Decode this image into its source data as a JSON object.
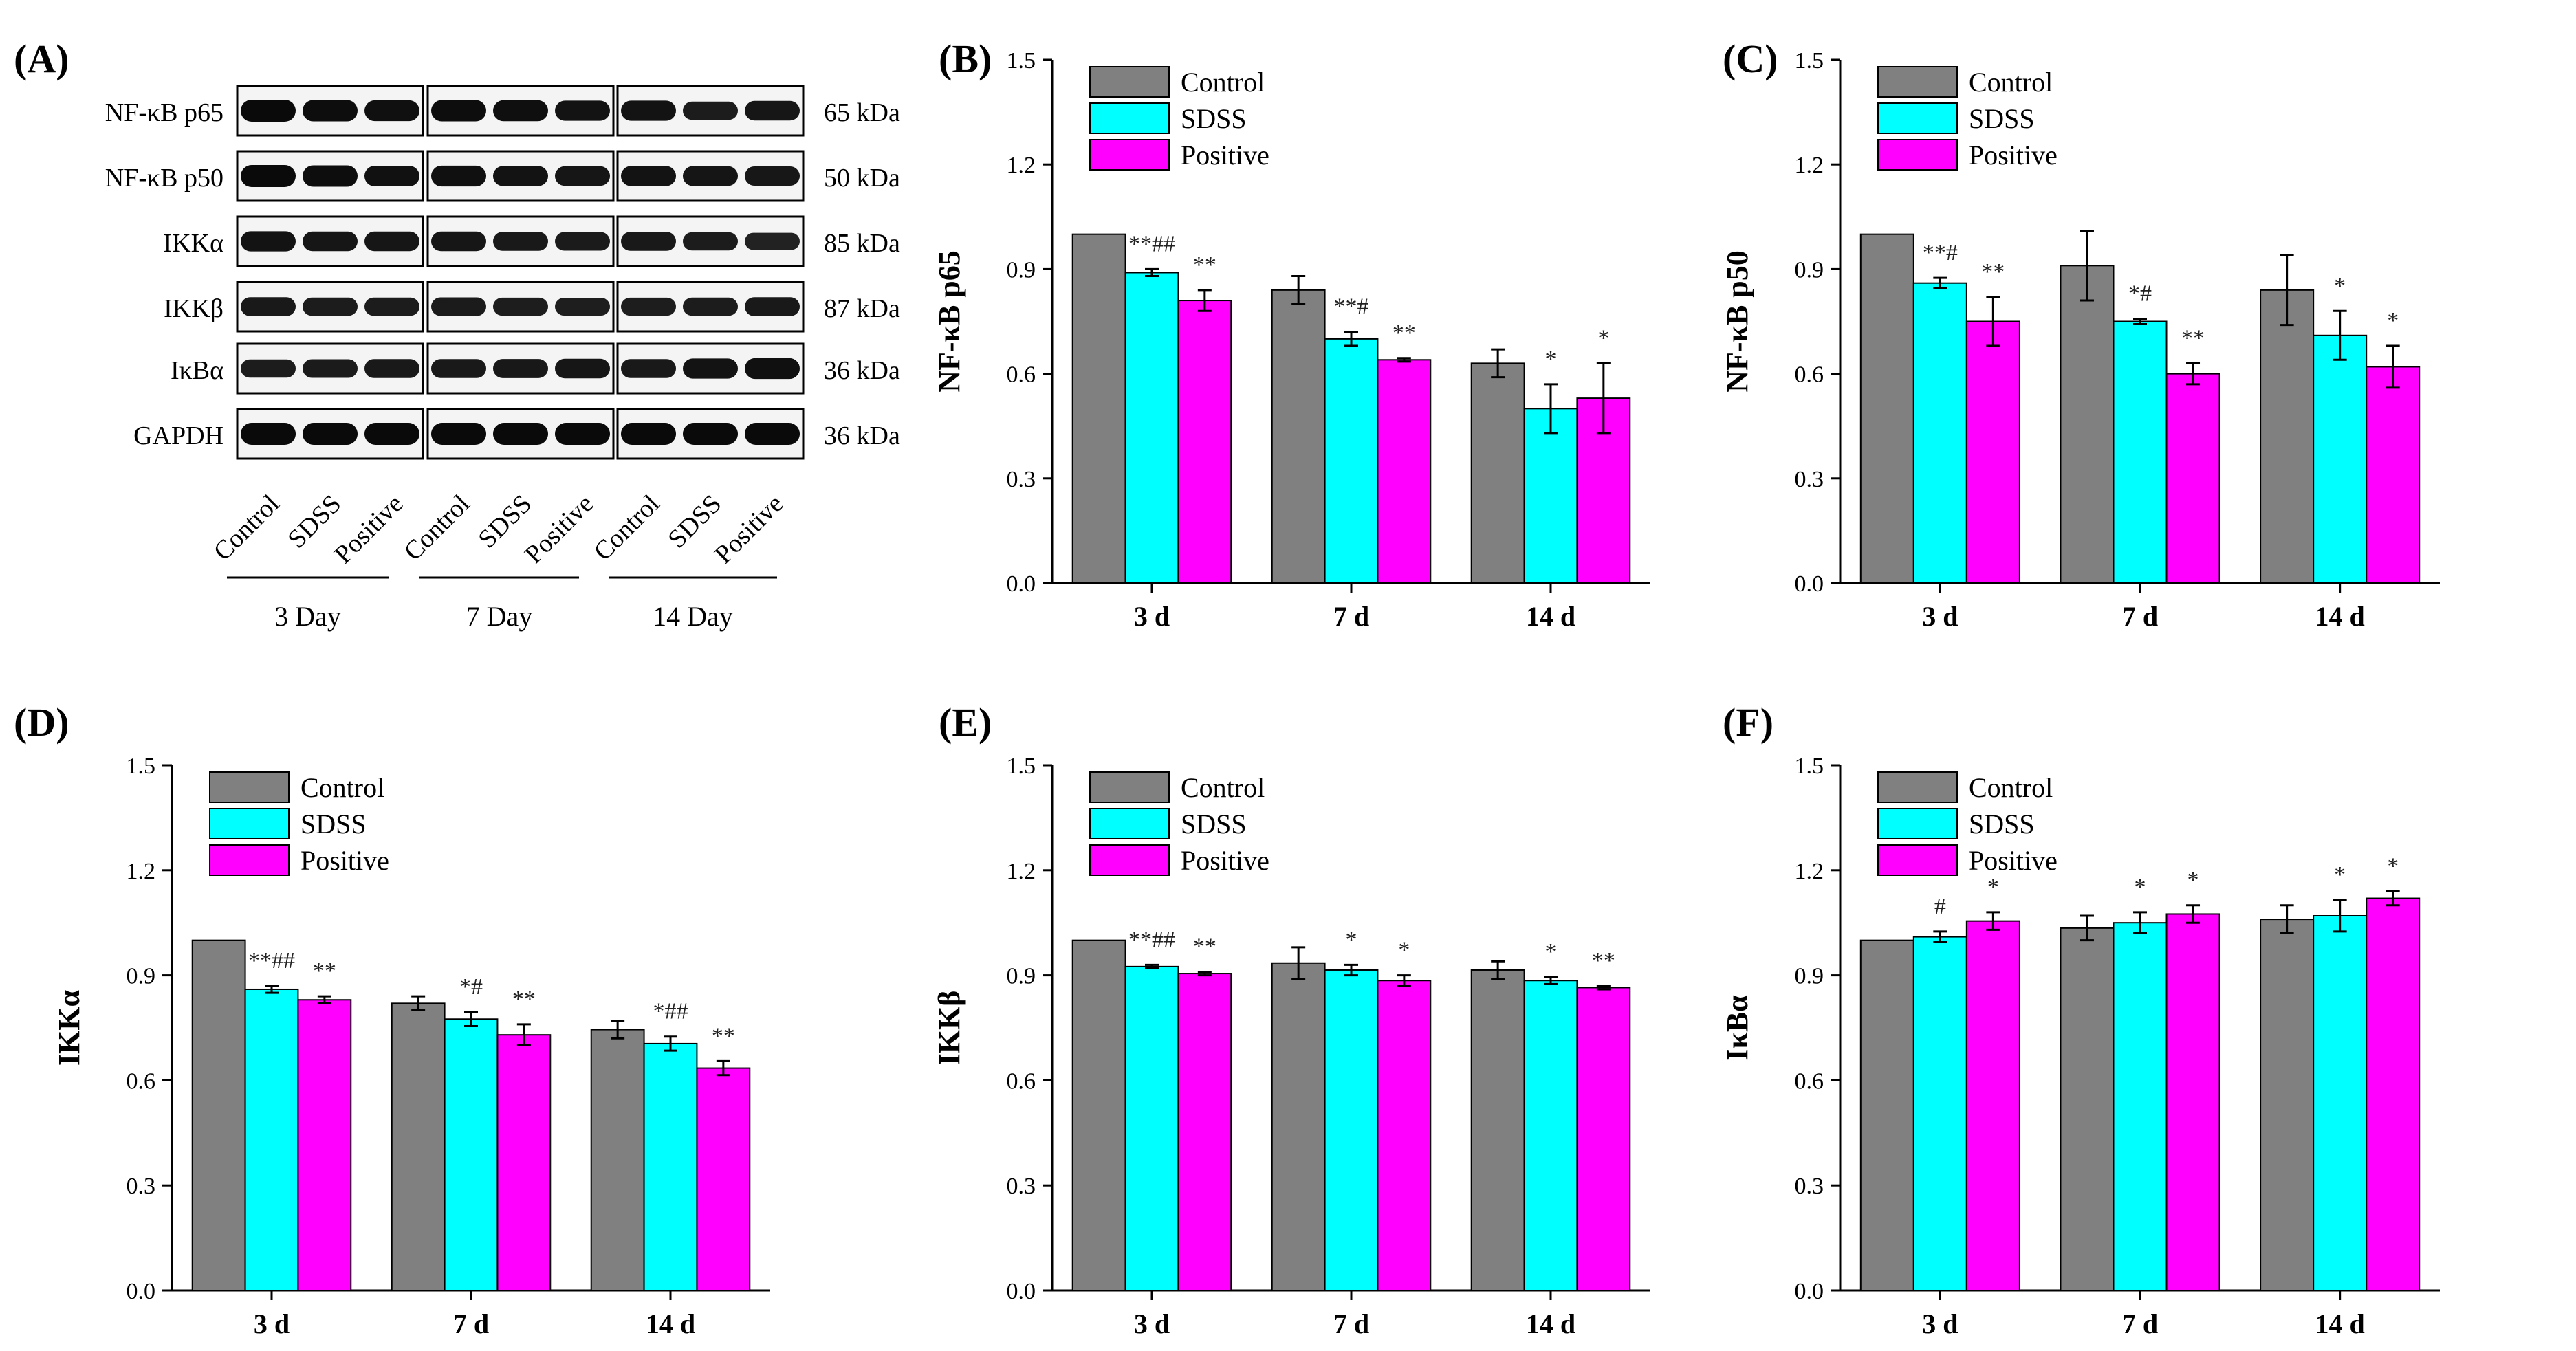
{
  "blot": {
    "panel_label": "(A)",
    "proteins": [
      "NF-κB p65",
      "NF-κB p50",
      "IKKα",
      "IKKβ",
      "IκBα",
      "GAPDH"
    ],
    "sizes": [
      "65 kDa",
      "50 kDa",
      "85 kDa",
      "87 kDa",
      "36 kDa",
      "36 kDa"
    ],
    "lane_labels": [
      "Control",
      "SDSS",
      "Positive"
    ],
    "days": [
      "3 Day",
      "7 Day",
      "14 Day"
    ],
    "band_intensity": [
      [
        1.0,
        0.95,
        0.9,
        0.95,
        0.92,
        0.85,
        0.85,
        0.7,
        0.8
      ],
      [
        1.0,
        0.95,
        0.88,
        0.9,
        0.85,
        0.8,
        0.85,
        0.82,
        0.78
      ],
      [
        0.85,
        0.8,
        0.8,
        0.8,
        0.75,
        0.72,
        0.75,
        0.7,
        0.6
      ],
      [
        0.75,
        0.7,
        0.7,
        0.72,
        0.68,
        0.66,
        0.68,
        0.7,
        0.75
      ],
      [
        0.7,
        0.72,
        0.75,
        0.75,
        0.76,
        0.8,
        0.75,
        0.85,
        0.9
      ],
      [
        1.0,
        1.0,
        1.0,
        1.0,
        1.0,
        1.0,
        1.0,
        1.0,
        1.0
      ]
    ]
  },
  "chart_data": [
    {
      "panel_label": "(B)",
      "type": "bar",
      "ylabel": "NF-κB p65",
      "categories": [
        "3 d",
        "7 d",
        "14 d"
      ],
      "ylim": [
        0,
        1.5
      ],
      "yticks": [
        "0.0",
        "0.3",
        "0.6",
        "0.9",
        "1.2",
        "1.5"
      ],
      "legend": "top-left",
      "series": [
        {
          "name": "Control",
          "color": "#808080",
          "values": [
            1.0,
            0.84,
            0.63
          ],
          "errors": [
            0,
            0.04,
            0.04
          ],
          "marks": [
            "",
            "",
            ""
          ]
        },
        {
          "name": "SDSS",
          "color": "#00FFFF",
          "values": [
            0.89,
            0.7,
            0.5
          ],
          "errors": [
            0.01,
            0.02,
            0.07
          ],
          "marks": [
            "**##",
            "**#",
            "*"
          ]
        },
        {
          "name": "Positive",
          "color": "#FF00FF",
          "values": [
            0.81,
            0.64,
            0.53
          ],
          "errors": [
            0.03,
            0.005,
            0.1
          ],
          "marks": [
            "**",
            "**",
            "*"
          ]
        }
      ]
    },
    {
      "panel_label": "(C)",
      "type": "bar",
      "ylabel": "NF-κB p50",
      "categories": [
        "3 d",
        "7 d",
        "14 d"
      ],
      "ylim": [
        0,
        1.5
      ],
      "yticks": [
        "0.0",
        "0.3",
        "0.6",
        "0.9",
        "1.2",
        "1.5"
      ],
      "legend": "top-left",
      "series": [
        {
          "name": "Control",
          "color": "#808080",
          "values": [
            1.0,
            0.91,
            0.84
          ],
          "errors": [
            0,
            0.1,
            0.1
          ],
          "marks": [
            "",
            "",
            ""
          ]
        },
        {
          "name": "SDSS",
          "color": "#00FFFF",
          "values": [
            0.86,
            0.75,
            0.71
          ],
          "errors": [
            0.015,
            0.008,
            0.07
          ],
          "marks": [
            "**#",
            "*#",
            "*"
          ]
        },
        {
          "name": "Positive",
          "color": "#FF00FF",
          "values": [
            0.75,
            0.6,
            0.62
          ],
          "errors": [
            0.07,
            0.03,
            0.06
          ],
          "marks": [
            "**",
            "**",
            "*"
          ]
        }
      ]
    },
    {
      "panel_label": "(D)",
      "type": "bar",
      "ylabel": "IKKα",
      "categories": [
        "3 d",
        "7 d",
        "14 d"
      ],
      "ylim": [
        0,
        1.5
      ],
      "yticks": [
        "0.0",
        "0.3",
        "0.6",
        "0.9",
        "1.2",
        "1.5"
      ],
      "legend": "top-left",
      "series": [
        {
          "name": "Control",
          "color": "#808080",
          "values": [
            1.0,
            0.82,
            0.745
          ],
          "errors": [
            0,
            0.02,
            0.025
          ],
          "marks": [
            "",
            "",
            ""
          ]
        },
        {
          "name": "SDSS",
          "color": "#00FFFF",
          "values": [
            0.86,
            0.775,
            0.705
          ],
          "errors": [
            0.01,
            0.02,
            0.02
          ],
          "marks": [
            "**##",
            "*#",
            "*##"
          ]
        },
        {
          "name": "Positive",
          "color": "#FF00FF",
          "values": [
            0.83,
            0.73,
            0.635
          ],
          "errors": [
            0.01,
            0.03,
            0.02
          ],
          "marks": [
            "**",
            "**",
            "**"
          ]
        }
      ]
    },
    {
      "panel_label": "(E)",
      "type": "bar",
      "ylabel": "IKKβ",
      "categories": [
        "3 d",
        "7 d",
        "14 d"
      ],
      "ylim": [
        0,
        1.5
      ],
      "yticks": [
        "0.0",
        "0.3",
        "0.6",
        "0.9",
        "1.2",
        "1.5"
      ],
      "legend": "top-left",
      "series": [
        {
          "name": "Control",
          "color": "#808080",
          "values": [
            1.0,
            0.935,
            0.915
          ],
          "errors": [
            0,
            0.045,
            0.025
          ],
          "marks": [
            "",
            "",
            ""
          ]
        },
        {
          "name": "SDSS",
          "color": "#00FFFF",
          "values": [
            0.925,
            0.915,
            0.885
          ],
          "errors": [
            0.005,
            0.015,
            0.01
          ],
          "marks": [
            "**##",
            "*",
            "*"
          ]
        },
        {
          "name": "Positive",
          "color": "#FF00FF",
          "values": [
            0.905,
            0.885,
            0.865
          ],
          "errors": [
            0.005,
            0.015,
            0.005
          ],
          "marks": [
            "**",
            "*",
            "**"
          ]
        }
      ]
    },
    {
      "panel_label": "(F)",
      "type": "bar",
      "ylabel": "IκBα",
      "categories": [
        "3 d",
        "7 d",
        "14 d"
      ],
      "ylim": [
        0,
        1.5
      ],
      "yticks": [
        "0.0",
        "0.3",
        "0.6",
        "0.9",
        "1.2",
        "1.5"
      ],
      "legend": "top-left",
      "series": [
        {
          "name": "Control",
          "color": "#808080",
          "values": [
            1.0,
            1.035,
            1.06
          ],
          "errors": [
            0,
            0.035,
            0.04
          ],
          "marks": [
            "",
            "",
            ""
          ]
        },
        {
          "name": "SDSS",
          "color": "#00FFFF",
          "values": [
            1.01,
            1.05,
            1.07
          ],
          "errors": [
            0.015,
            0.03,
            0.045
          ],
          "marks": [
            "#",
            "*",
            "*"
          ]
        },
        {
          "name": "Positive",
          "color": "#FF00FF",
          "values": [
            1.055,
            1.075,
            1.12
          ],
          "errors": [
            0.025,
            0.025,
            0.02
          ],
          "marks": [
            "*",
            "*",
            "*"
          ]
        }
      ]
    }
  ]
}
